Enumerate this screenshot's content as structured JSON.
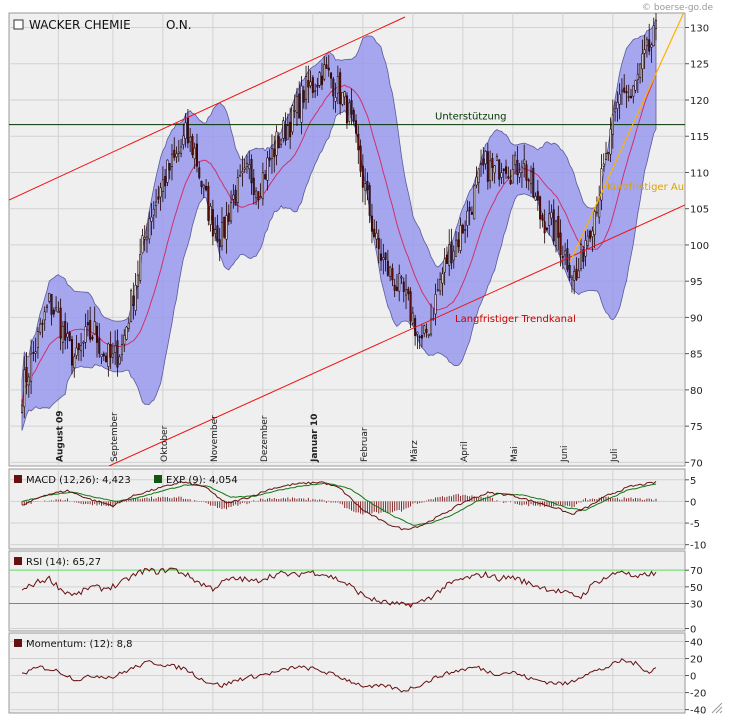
{
  "header": {
    "instrument": "WACKER CHEMIE",
    "suffix": "O.N.",
    "watermark": "© boerse-go.de"
  },
  "colors": {
    "panel_bg": "#efefef",
    "grid": "#d2d2d2",
    "band_fill": "#9999ee",
    "band_edge": "#5a5a9a",
    "candle": "#1a0000",
    "ma": "#d0306a",
    "trend_line": "#ee1111",
    "short_trend": "#ffb000",
    "support_line": "#003300",
    "indicator_line": "#661111",
    "signal_line": "#117711",
    "rsi_upper": "#66dd66",
    "rsi_lower": "#ee5555",
    "legend_dark": "#661111",
    "legend_green": "#115511"
  },
  "chart_data": [
    {
      "type": "candlestick",
      "name": "price",
      "y_ticks": [
        70,
        75,
        80,
        85,
        90,
        95,
        100,
        105,
        110,
        115,
        120,
        125,
        130
      ],
      "ylim": [
        69.5,
        132
      ],
      "x_month_labels": [
        "August 09",
        "September",
        "Oktober",
        "November",
        "Dezember",
        "Januar 10",
        "Februar",
        "März",
        "April",
        "Mai",
        "Juni",
        "Juli"
      ],
      "bold_month_labels": [
        "August 09",
        "Januar 10"
      ],
      "close_anchors": [
        [
          0,
          80
        ],
        [
          4,
          84
        ],
        [
          8,
          88
        ],
        [
          12,
          92
        ],
        [
          16,
          90
        ],
        [
          20,
          86
        ],
        [
          24,
          84
        ],
        [
          28,
          87
        ],
        [
          32,
          88
        ],
        [
          36,
          85
        ],
        [
          40,
          84
        ],
        [
          44,
          86
        ],
        [
          48,
          92
        ],
        [
          52,
          98
        ],
        [
          56,
          104
        ],
        [
          60,
          107
        ],
        [
          64,
          110
        ],
        [
          68,
          112
        ],
        [
          72,
          115
        ],
        [
          76,
          113
        ],
        [
          80,
          107
        ],
        [
          84,
          103
        ],
        [
          88,
          101
        ],
        [
          92,
          106
        ],
        [
          96,
          108
        ],
        [
          100,
          110
        ],
        [
          104,
          108
        ],
        [
          108,
          111
        ],
        [
          112,
          114
        ],
        [
          116,
          116
        ],
        [
          120,
          118
        ],
        [
          124,
          121
        ],
        [
          128,
          122
        ],
        [
          132,
          124
        ],
        [
          136,
          123
        ],
        [
          140,
          121
        ],
        [
          144,
          118
        ],
        [
          148,
          112
        ],
        [
          152,
          106
        ],
        [
          156,
          100
        ],
        [
          160,
          97
        ],
        [
          164,
          95
        ],
        [
          168,
          93
        ],
        [
          172,
          90
        ],
        [
          176,
          86
        ],
        [
          180,
          90
        ],
        [
          184,
          95
        ],
        [
          188,
          99
        ],
        [
          192,
          101
        ],
        [
          196,
          104
        ],
        [
          200,
          108
        ],
        [
          204,
          111
        ],
        [
          208,
          110
        ],
        [
          212,
          112
        ],
        [
          216,
          110
        ],
        [
          220,
          112
        ],
        [
          224,
          108
        ],
        [
          228,
          104
        ],
        [
          232,
          103
        ],
        [
          236,
          101
        ],
        [
          240,
          98
        ],
        [
          244,
          95
        ],
        [
          248,
          101
        ],
        [
          252,
          105
        ],
        [
          256,
          110
        ],
        [
          260,
          116
        ],
        [
          264,
          122
        ],
        [
          268,
          120
        ],
        [
          272,
          124
        ],
        [
          276,
          127
        ],
        [
          279,
          129
        ]
      ]
    },
    {
      "type": "line",
      "name": "macd",
      "legend": [
        {
          "label": "MACD (12,26): 4,423"
        },
        {
          "label": "EXP (9): 4,054"
        }
      ],
      "y_ticks": [
        -10,
        -5,
        0,
        5
      ],
      "ylim": [
        -11,
        7.5
      ],
      "macd_anchors": [
        [
          0,
          -1
        ],
        [
          10,
          1.5
        ],
        [
          20,
          2.5
        ],
        [
          30,
          0.5
        ],
        [
          40,
          -1
        ],
        [
          50,
          1.5
        ],
        [
          60,
          3
        ],
        [
          70,
          4.5
        ],
        [
          80,
          3.5
        ],
        [
          90,
          -0.5
        ],
        [
          100,
          1
        ],
        [
          110,
          3
        ],
        [
          120,
          4
        ],
        [
          132,
          4.5
        ],
        [
          140,
          3
        ],
        [
          150,
          -2
        ],
        [
          160,
          -5
        ],
        [
          168,
          -6.5
        ],
        [
          176,
          -5.5
        ],
        [
          185,
          -3
        ],
        [
          195,
          0
        ],
        [
          205,
          2
        ],
        [
          215,
          1.5
        ],
        [
          225,
          0
        ],
        [
          235,
          -1.5
        ],
        [
          242,
          -3
        ],
        [
          250,
          -1
        ],
        [
          258,
          1.5
        ],
        [
          268,
          3.5
        ],
        [
          279,
          4.4
        ]
      ],
      "signal_anchors": [
        [
          0,
          0
        ],
        [
          12,
          1.5
        ],
        [
          22,
          2.2
        ],
        [
          32,
          1
        ],
        [
          42,
          0
        ],
        [
          52,
          1
        ],
        [
          62,
          2.5
        ],
        [
          72,
          3.8
        ],
        [
          82,
          3.5
        ],
        [
          92,
          1
        ],
        [
          102,
          1.2
        ],
        [
          112,
          2.5
        ],
        [
          122,
          3.5
        ],
        [
          134,
          4.2
        ],
        [
          144,
          3
        ],
        [
          154,
          -0.5
        ],
        [
          164,
          -3.5
        ],
        [
          172,
          -5.5
        ],
        [
          180,
          -5
        ],
        [
          190,
          -3
        ],
        [
          200,
          0
        ],
        [
          210,
          1.8
        ],
        [
          220,
          1.5
        ],
        [
          230,
          0.3
        ],
        [
          240,
          -1.5
        ],
        [
          248,
          -2
        ],
        [
          256,
          0
        ],
        [
          266,
          2.5
        ],
        [
          279,
          4.05
        ]
      ]
    },
    {
      "type": "line",
      "name": "rsi",
      "legend": [
        {
          "label": "RSI (14): 65,27"
        }
      ],
      "y_ticks": [
        0,
        30,
        50,
        70
      ],
      "ylim": [
        -3,
        93
      ],
      "upper_level": 70,
      "lower_level": 30,
      "anchors": [
        [
          0,
          45
        ],
        [
          6,
          55
        ],
        [
          12,
          60
        ],
        [
          18,
          45
        ],
        [
          24,
          40
        ],
        [
          30,
          50
        ],
        [
          36,
          48
        ],
        [
          42,
          52
        ],
        [
          48,
          62
        ],
        [
          54,
          70
        ],
        [
          60,
          68
        ],
        [
          66,
          72
        ],
        [
          72,
          65
        ],
        [
          78,
          55
        ],
        [
          84,
          48
        ],
        [
          90,
          58
        ],
        [
          96,
          60
        ],
        [
          102,
          56
        ],
        [
          108,
          62
        ],
        [
          114,
          66
        ],
        [
          120,
          64
        ],
        [
          126,
          68
        ],
        [
          132,
          66
        ],
        [
          138,
          60
        ],
        [
          144,
          52
        ],
        [
          150,
          40
        ],
        [
          156,
          33
        ],
        [
          162,
          30
        ],
        [
          168,
          28
        ],
        [
          174,
          30
        ],
        [
          180,
          38
        ],
        [
          186,
          50
        ],
        [
          192,
          58
        ],
        [
          198,
          62
        ],
        [
          204,
          65
        ],
        [
          210,
          60
        ],
        [
          216,
          62
        ],
        [
          222,
          55
        ],
        [
          228,
          50
        ],
        [
          234,
          46
        ],
        [
          240,
          42
        ],
        [
          246,
          38
        ],
        [
          252,
          55
        ],
        [
          258,
          62
        ],
        [
          264,
          70
        ],
        [
          270,
          60
        ],
        [
          276,
          66
        ],
        [
          279,
          65
        ]
      ]
    },
    {
      "type": "line",
      "name": "momentum",
      "legend": [
        {
          "label": "Momentum: (12): 8,8"
        }
      ],
      "y_ticks": [
        -40,
        -20,
        0,
        20,
        40
      ],
      "ylim": [
        -44,
        50
      ],
      "anchors": [
        [
          0,
          2
        ],
        [
          8,
          10
        ],
        [
          16,
          5
        ],
        [
          24,
          -5
        ],
        [
          32,
          0
        ],
        [
          40,
          -2
        ],
        [
          48,
          8
        ],
        [
          56,
          16
        ],
        [
          64,
          12
        ],
        [
          72,
          8
        ],
        [
          80,
          -6
        ],
        [
          88,
          -12
        ],
        [
          96,
          -4
        ],
        [
          104,
          0
        ],
        [
          112,
          4
        ],
        [
          120,
          10
        ],
        [
          128,
          8
        ],
        [
          136,
          2
        ],
        [
          144,
          -6
        ],
        [
          152,
          -14
        ],
        [
          160,
          -12
        ],
        [
          168,
          -18
        ],
        [
          176,
          -10
        ],
        [
          184,
          0
        ],
        [
          192,
          6
        ],
        [
          200,
          10
        ],
        [
          208,
          2
        ],
        [
          216,
          4
        ],
        [
          224,
          -4
        ],
        [
          232,
          -8
        ],
        [
          240,
          -10
        ],
        [
          248,
          2
        ],
        [
          256,
          8
        ],
        [
          264,
          18
        ],
        [
          270,
          14
        ],
        [
          276,
          4
        ],
        [
          279,
          9
        ]
      ]
    }
  ],
  "annotations": {
    "support": {
      "label": "Unterstützung",
      "level": 116.6
    },
    "long_channel": {
      "label": "Langfristiger Trendkanal"
    },
    "short_trend": {
      "label": "Kurzfristiger Aufwärtstrend"
    }
  }
}
